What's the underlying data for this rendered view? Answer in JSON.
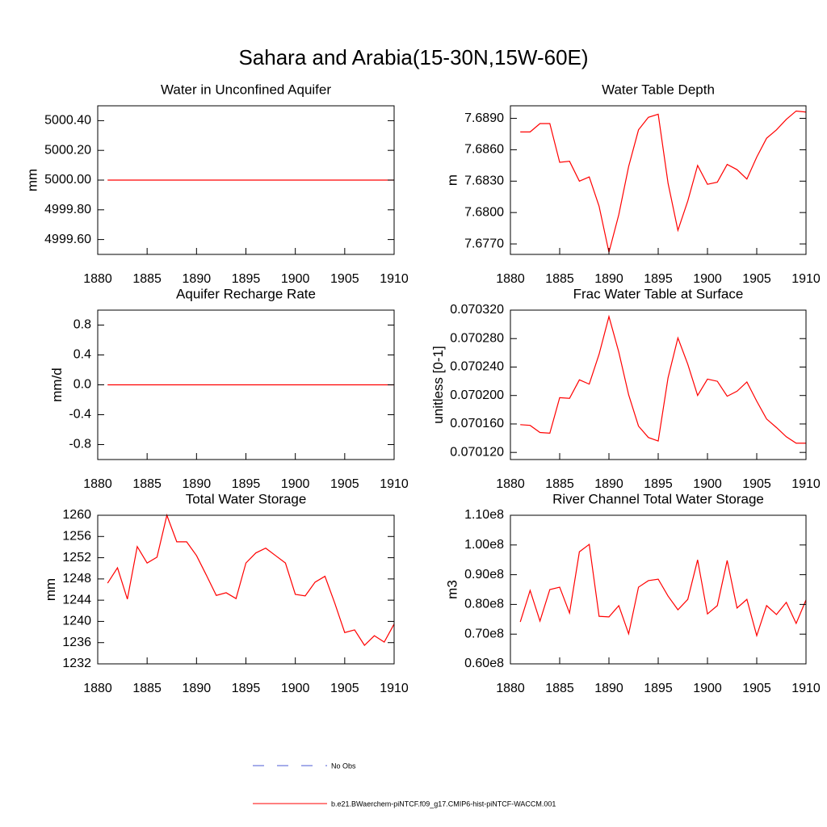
{
  "title": "Sahara and Arabia(15-30N,15W-60E)",
  "legend": [
    {
      "name": "No Obs",
      "color": "#4b5bd6",
      "dashed": true
    },
    {
      "name": "b.e21.BWaerchem-piNTCF.f09_g17.CMIP6-hist-piNTCF-WACCM.001",
      "color": "#ff0000",
      "dashed": false
    }
  ],
  "chart_data": [
    {
      "type": "line",
      "title": "Water in Unconfined Aquifer",
      "ylabel": "mm",
      "color": "#ff0000",
      "x": [
        1881,
        1882,
        1883,
        1884,
        1885,
        1886,
        1887,
        1888,
        1889,
        1890,
        1891,
        1892,
        1893,
        1894,
        1895,
        1896,
        1897,
        1898,
        1899,
        1900,
        1901,
        1902,
        1903,
        1904,
        1905,
        1906,
        1907,
        1908,
        1909,
        1910
      ],
      "values": [
        5000,
        5000,
        5000,
        5000,
        5000,
        5000,
        5000,
        5000,
        5000,
        5000,
        5000,
        5000,
        5000,
        5000,
        5000,
        5000,
        5000,
        5000,
        5000,
        5000,
        5000,
        5000,
        5000,
        5000,
        5000,
        5000,
        5000,
        5000,
        5000,
        5000
      ],
      "xlim": [
        1880,
        1910
      ],
      "xticks": [
        1880,
        1885,
        1890,
        1895,
        1900,
        1905,
        1910
      ],
      "ylim": [
        4999.5,
        5000.5
      ],
      "yticks": [
        {
          "value": 4999.6,
          "label": "4999.60"
        },
        {
          "value": 4999.8,
          "label": "4999.80"
        },
        {
          "value": 5000,
          "label": "5000.00"
        },
        {
          "value": 5000.2,
          "label": "5000.20"
        },
        {
          "value": 5000.4,
          "label": "5000.40"
        }
      ]
    },
    {
      "type": "line",
      "title": "Water Table Depth",
      "ylabel": "m",
      "color": "#ff0000",
      "x": [
        1881,
        1882,
        1883,
        1884,
        1885,
        1886,
        1887,
        1888,
        1889,
        1890,
        1891,
        1892,
        1893,
        1894,
        1895,
        1896,
        1897,
        1898,
        1899,
        1900,
        1901,
        1902,
        1903,
        1904,
        1905,
        1906,
        1907,
        1908,
        1909,
        1910
      ],
      "values": [
        7.6877,
        7.6877,
        7.6885,
        7.6885,
        7.6848,
        7.6849,
        7.683,
        7.6834,
        7.6806,
        7.6762,
        7.6798,
        7.6844,
        7.6879,
        7.6891,
        7.6894,
        7.6828,
        7.6783,
        7.6811,
        7.6845,
        7.6827,
        7.6829,
        7.6846,
        7.6841,
        7.6832,
        7.6853,
        7.6871,
        7.6879,
        7.6889,
        7.6897,
        7.6896
      ],
      "xlim": [
        1880,
        1910
      ],
      "xticks": [
        1880,
        1885,
        1890,
        1895,
        1900,
        1905,
        1910
      ],
      "ylim": [
        7.676,
        7.6902
      ],
      "yticks": [
        {
          "value": 7.677,
          "label": "7.6770"
        },
        {
          "value": 7.68,
          "label": "7.6800"
        },
        {
          "value": 7.683,
          "label": "7.6830"
        },
        {
          "value": 7.686,
          "label": "7.6860"
        },
        {
          "value": 7.689,
          "label": "7.6890"
        }
      ]
    },
    {
      "type": "line",
      "title": "Aquifer Recharge Rate",
      "ylabel": "mm/d",
      "color": "#ff0000",
      "x": [
        1881,
        1882,
        1883,
        1884,
        1885,
        1886,
        1887,
        1888,
        1889,
        1890,
        1891,
        1892,
        1893,
        1894,
        1895,
        1896,
        1897,
        1898,
        1899,
        1900,
        1901,
        1902,
        1903,
        1904,
        1905,
        1906,
        1907,
        1908,
        1909,
        1910
      ],
      "values": [
        0,
        0,
        0,
        0,
        0,
        0,
        0,
        0,
        0,
        0,
        0,
        0,
        0,
        0,
        0,
        0,
        0,
        0,
        0,
        0,
        0,
        0,
        0,
        0,
        0,
        0,
        0,
        0,
        0,
        0
      ],
      "xlim": [
        1880,
        1910
      ],
      "xticks": [
        1880,
        1885,
        1890,
        1895,
        1900,
        1905,
        1910
      ],
      "ylim": [
        -1,
        1
      ],
      "yticks": [
        -0.8,
        -0.4,
        {
          "value": 0,
          "label": "0.0"
        },
        0.4,
        0.8
      ]
    },
    {
      "type": "line",
      "title": "Frac Water Table at Surface",
      "ylabel": "unitless [0-1]",
      "color": "#ff0000",
      "x": [
        1881,
        1882,
        1883,
        1884,
        1885,
        1886,
        1887,
        1888,
        1889,
        1890,
        1891,
        1892,
        1893,
        1894,
        1895,
        1896,
        1897,
        1898,
        1899,
        1900,
        1901,
        1902,
        1903,
        1904,
        1905,
        1906,
        1907,
        1908,
        1909,
        1910
      ],
      "values": [
        0.070159,
        0.070158,
        0.070148,
        0.070147,
        0.070197,
        0.070196,
        0.070222,
        0.070216,
        0.070258,
        0.070311,
        0.070261,
        0.070201,
        0.070157,
        0.070141,
        0.070136,
        0.070225,
        0.070281,
        0.070244,
        0.0702,
        0.070223,
        0.07022,
        0.070199,
        0.070206,
        0.070219,
        0.070192,
        0.070167,
        0.070155,
        0.070142,
        0.070133,
        0.070133
      ],
      "xlim": [
        1880,
        1910
      ],
      "xticks": [
        1880,
        1885,
        1890,
        1895,
        1900,
        1905,
        1910
      ],
      "ylim": [
        0.07011,
        0.07032
      ],
      "yticks": [
        {
          "value": 0.07012,
          "label": "0.070120"
        },
        {
          "value": 0.07016,
          "label": "0.070160"
        },
        {
          "value": 0.0702,
          "label": "0.070200"
        },
        {
          "value": 0.07024,
          "label": "0.070240"
        },
        {
          "value": 0.07028,
          "label": "0.070280"
        },
        {
          "value": 0.07032,
          "label": "0.070320"
        }
      ]
    },
    {
      "type": "line",
      "title": "Total Water Storage",
      "ylabel": "mm",
      "color": "#ff0000",
      "x": [
        1881,
        1882,
        1883,
        1884,
        1885,
        1886,
        1887,
        1888,
        1889,
        1890,
        1891,
        1892,
        1893,
        1894,
        1895,
        1896,
        1897,
        1898,
        1899,
        1900,
        1901,
        1902,
        1903,
        1904,
        1905,
        1906,
        1907,
        1908,
        1909,
        1910
      ],
      "values": [
        1247.2,
        1250.1,
        1244.2,
        1254.1,
        1251.0,
        1252.1,
        1260,
        1255.0,
        1255.0,
        1252.4,
        1248.7,
        1244.9,
        1245.4,
        1244.3,
        1251.0,
        1252.9,
        1253.8,
        1252.4,
        1251.0,
        1245.1,
        1244.8,
        1247.4,
        1248.5,
        1243.4,
        1237.9,
        1238.4,
        1235.5,
        1237.3,
        1236.1,
        1239.5
      ],
      "xlim": [
        1880,
        1910
      ],
      "xticks": [
        1880,
        1885,
        1890,
        1895,
        1900,
        1905,
        1910
      ],
      "ylim": [
        1232,
        1260
      ],
      "yticks": [
        1232,
        1236,
        1240,
        1244,
        1248,
        1252,
        1256,
        1260
      ]
    },
    {
      "type": "line",
      "title": "River Channel Total Water Storage",
      "ylabel": "m3",
      "color": "#ff0000",
      "x": [
        1881,
        1882,
        1883,
        1884,
        1885,
        1886,
        1887,
        1888,
        1889,
        1890,
        1891,
        1892,
        1893,
        1894,
        1895,
        1896,
        1897,
        1898,
        1899,
        1900,
        1901,
        1902,
        1903,
        1904,
        1905,
        1906,
        1907,
        1908,
        1909,
        1910
      ],
      "values": [
        74100000,
        84700000,
        74400000,
        85000000,
        85800000,
        77100000,
        97700000,
        100200000,
        76000000,
        75800000,
        79600000,
        70100000,
        85800000,
        88000000,
        88500000,
        82800000,
        78200000,
        81700000,
        95000000,
        76800000,
        79600000,
        94800000,
        78800000,
        81700000,
        69500000,
        79600000,
        76600000,
        80700000,
        73600000,
        81500000
      ],
      "xlim": [
        1880,
        1910
      ],
      "xticks": [
        1880,
        1885,
        1890,
        1895,
        1900,
        1905,
        1910
      ],
      "ylim": [
        60000000,
        110000000
      ],
      "yticks": [
        {
          "value": 60000000,
          "label": "0.60e8"
        },
        {
          "value": 70000000,
          "label": "0.70e8"
        },
        {
          "value": 80000000,
          "label": "0.80e8"
        },
        {
          "value": 90000000,
          "label": "0.90e8"
        },
        {
          "value": 100000000,
          "label": "1.00e8"
        },
        {
          "value": 110000000,
          "label": "1.10e8"
        }
      ]
    }
  ]
}
